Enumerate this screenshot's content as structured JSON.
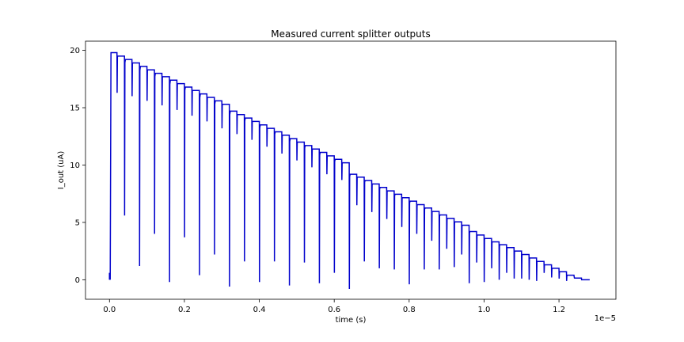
{
  "chart_data": {
    "type": "line",
    "title": "Measured current splitter outputs",
    "xlabel": "time (s)",
    "ylabel": "I_out (uA)",
    "x_offset_text": "1e−5",
    "xlim": [
      -0.064,
      1.352
    ],
    "ylim": [
      -1.7,
      20.8
    ],
    "x_ticks": [
      0.0,
      0.2,
      0.4,
      0.6,
      0.8,
      1.0,
      1.2
    ],
    "x_tick_labels": [
      "0.0",
      "0.2",
      "0.4",
      "0.6",
      "0.8",
      "1.0",
      "1.2"
    ],
    "y_ticks": [
      0,
      5,
      10,
      15,
      20
    ],
    "y_tick_labels": [
      "0",
      "5",
      "10",
      "15",
      "20"
    ],
    "grid": false,
    "legend": "none",
    "series": [
      {
        "color": "#0000cc",
        "x_unit_scale": "1e-5 s",
        "period": 0.02,
        "steps": 64,
        "plateau_start_level": 19.8,
        "plateau_end_level": 0.0,
        "plateau_levels": [
          19.8,
          19.5,
          19.2,
          18.9,
          18.6,
          18.3,
          18.0,
          17.7,
          17.4,
          17.1,
          16.8,
          16.5,
          16.2,
          15.9,
          15.6,
          15.3,
          14.7,
          14.4,
          14.1,
          13.8,
          13.5,
          13.2,
          12.9,
          12.6,
          12.3,
          12.0,
          11.7,
          11.4,
          11.1,
          10.8,
          10.5,
          10.2,
          9.2,
          8.95,
          8.65,
          8.35,
          8.05,
          7.75,
          7.45,
          7.15,
          6.85,
          6.55,
          6.25,
          5.95,
          5.65,
          5.35,
          5.05,
          4.75,
          4.2,
          3.9,
          3.6,
          3.3,
          3.05,
          2.8,
          2.5,
          2.2,
          1.9,
          1.6,
          1.3,
          1.0,
          0.7,
          0.4,
          0.15,
          0.0
        ],
        "dip_levels": [
          0.0,
          16.3,
          5.6,
          16.0,
          1.2,
          15.6,
          4.0,
          15.2,
          -0.2,
          14.8,
          3.7,
          14.3,
          0.4,
          13.8,
          2.2,
          13.2,
          -0.6,
          12.7,
          1.6,
          12.2,
          -0.2,
          11.6,
          1.6,
          11.0,
          -0.5,
          10.4,
          1.5,
          9.8,
          -0.3,
          9.2,
          0.6,
          8.7,
          -0.8,
          6.5,
          1.6,
          5.9,
          1.0,
          5.3,
          0.9,
          4.6,
          -0.4,
          4.0,
          0.9,
          3.4,
          0.9,
          2.7,
          1.1,
          2.2,
          -0.3,
          1.5,
          -0.2,
          1.0,
          0.0,
          0.6,
          0.1,
          0.1,
          0.0,
          -0.1,
          0.6,
          0.2,
          0.1,
          -0.1,
          0.3,
          0.0
        ]
      }
    ]
  }
}
